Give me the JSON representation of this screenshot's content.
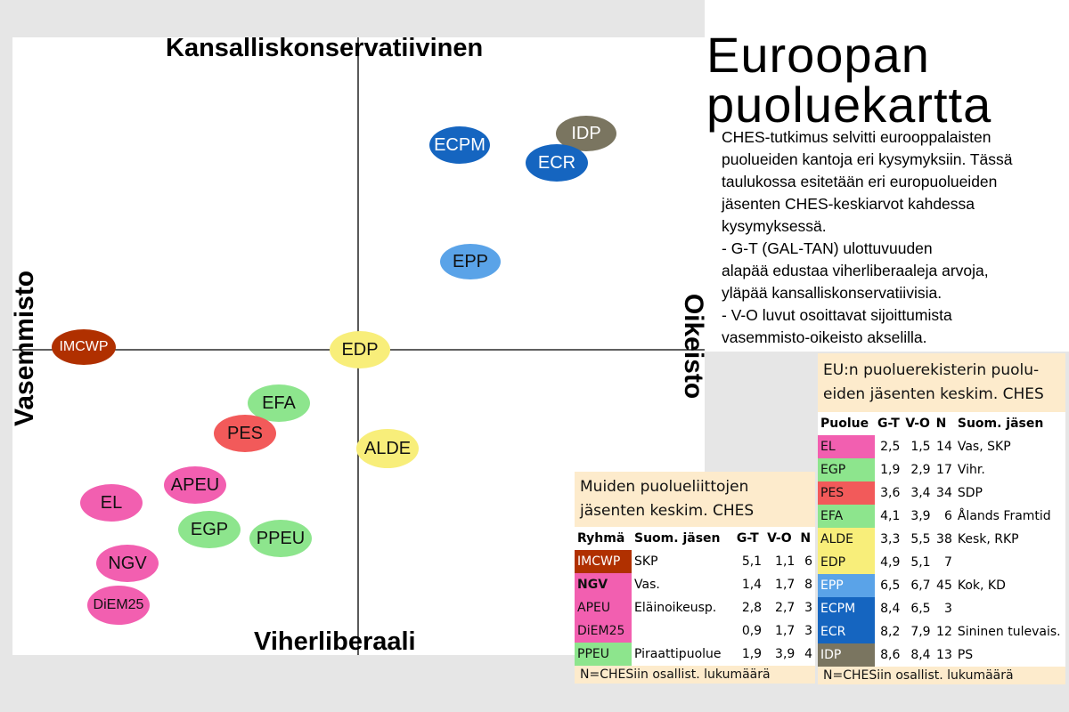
{
  "title_line1": "Euroopan",
  "title_line2": "puoluekartta",
  "description": [
    "CHES-tutkimus selvitti eurooppalaisten",
    "puolueiden kantoja eri kysymyksiin. Tässä",
    "taulukossa esitetään eri europuolueiden",
    "jäsenten CHES-keskiarvot kahdessa",
    "kysymyksessä.",
    "- G-T (GAL-TAN) ulottuvuuden",
    "alapää edustaa viherliberaaleja arvoja,",
    "yläpää kansalliskonservatiivisia.",
    "- V-O luvut osoittavat sijoittumista",
    "vasemmisto-oikeisto akselilla."
  ],
  "axes": {
    "top": "Kansalliskonservatiivinen",
    "bottom": "Viherliberaali",
    "left": "Vasemmisto",
    "right": "Oikeisto"
  },
  "parties": [
    {
      "label": "ECPM",
      "color": "#1565c0",
      "text_color": "#ffffff"
    },
    {
      "label": "IDP",
      "color": "#7a7560",
      "text_color": "#ffffff"
    },
    {
      "label": "ECR",
      "color": "#1565c0",
      "text_color": "#ffffff"
    },
    {
      "label": "EPP",
      "color": "#5aa3e8",
      "text_color": "#111111"
    },
    {
      "label": "IMCWP",
      "color": "#b03000",
      "text_color": "#ffffff"
    },
    {
      "label": "EDP",
      "color": "#f8ee7a",
      "text_color": "#111111"
    },
    {
      "label": "EFA",
      "color": "#8de58d",
      "text_color": "#111111"
    },
    {
      "label": "PES",
      "color": "#f25a5a",
      "text_color": "#111111"
    },
    {
      "label": "ALDE",
      "color": "#f8ee7a",
      "text_color": "#111111"
    },
    {
      "label": "APEU",
      "color": "#f25fb0",
      "text_color": "#111111"
    },
    {
      "label": "EL",
      "color": "#f25fb0",
      "text_color": "#111111"
    },
    {
      "label": "EGP",
      "color": "#8de58d",
      "text_color": "#111111"
    },
    {
      "label": "PPEU",
      "color": "#8de58d",
      "text_color": "#111111"
    },
    {
      "label": "NGV",
      "color": "#f25fb0",
      "text_color": "#111111"
    },
    {
      "label": "DiEM25",
      "color": "#f25fb0",
      "text_color": "#111111"
    }
  ],
  "eu_table": {
    "title_line1": "EU:n puoluerekisterin puolu-",
    "title_line2": "eiden jäsenten keskim. CHES",
    "headers": [
      "Puolue",
      "G-T",
      "V-O",
      "N",
      "Suom. jäsen"
    ],
    "rows": [
      {
        "party": "EL",
        "gt": "2,5",
        "vo": "1,5",
        "n": "14",
        "member": "Vas, SKP",
        "color": "#f25fb0",
        "text_color": "#111111"
      },
      {
        "party": "EGP",
        "gt": "1,9",
        "vo": "2,9",
        "n": "17",
        "member": "Vihr.",
        "color": "#8de58d",
        "text_color": "#111111"
      },
      {
        "party": "PES",
        "gt": "3,6",
        "vo": "3,4",
        "n": "34",
        "member": "SDP",
        "color": "#f25a5a",
        "text_color": "#111111"
      },
      {
        "party": "EFA",
        "gt": "4,1",
        "vo": "3,9",
        "n": "6",
        "member": "Ålands Framtid",
        "color": "#8de58d",
        "text_color": "#111111",
        "small": true
      },
      {
        "party": "ALDE",
        "gt": "3,3",
        "vo": "5,5",
        "n": "38",
        "member": "Kesk, RKP",
        "color": "#f8ee7a",
        "text_color": "#111111"
      },
      {
        "party": "EDP",
        "gt": "4,9",
        "vo": "5,1",
        "n": "7",
        "member": "",
        "color": "#f8ee7a",
        "text_color": "#111111"
      },
      {
        "party": "EPP",
        "gt": "6,5",
        "vo": "6,7",
        "n": "45",
        "member": "Kok, KD",
        "color": "#5aa3e8",
        "text_color": "#ffffff"
      },
      {
        "party": "ECPM",
        "gt": "8,4",
        "vo": "6,5",
        "n": "3",
        "member": "",
        "color": "#1565c0",
        "text_color": "#ffffff"
      },
      {
        "party": "ECR",
        "gt": "8,2",
        "vo": "7,9",
        "n": "12",
        "member": "Sininen tulevais.",
        "color": "#1565c0",
        "text_color": "#ffffff",
        "small": true
      },
      {
        "party": "IDP",
        "gt": "8,6",
        "vo": "8,4",
        "n": "13",
        "member": "PS",
        "color": "#7a7560",
        "text_color": "#ffffff"
      }
    ],
    "footer": "N=CHESiin osallist. lukumäärä"
  },
  "other_table": {
    "title_line1": "Muiden puolueliittojen",
    "title_line2": "jäsenten keskim. CHES",
    "headers": [
      "Ryhmä",
      "Suom. jäsen",
      "G-T",
      "V-O",
      "N"
    ],
    "rows": [
      {
        "party": "IMCWP",
        "member": "SKP",
        "gt": "5,1",
        "vo": "1,1",
        "n": "6",
        "color": "#b03000",
        "text_color": "#ffffff"
      },
      {
        "party": "NGV",
        "member": "Vas.",
        "gt": "1,4",
        "vo": "1,7",
        "n": "8",
        "color": "#f25fb0",
        "text_color": "#111111",
        "bold": true
      },
      {
        "party": "APEU",
        "member": "Eläinoikeusp.",
        "gt": "2,8",
        "vo": "2,7",
        "n": "3",
        "color": "#f25fb0",
        "text_color": "#111111"
      },
      {
        "party": "DiEM25",
        "member": "",
        "gt": "0,9",
        "vo": "1,7",
        "n": "3",
        "color": "#f25fb0",
        "text_color": "#111111"
      },
      {
        "party": "PPEU",
        "member": "Piraattipuolue",
        "gt": "1,9",
        "vo": "3,9",
        "n": "4",
        "color": "#8de58d",
        "text_color": "#111111",
        "small": true
      }
    ],
    "footer": "N=CHESiin osallist. lukumäärä"
  }
}
